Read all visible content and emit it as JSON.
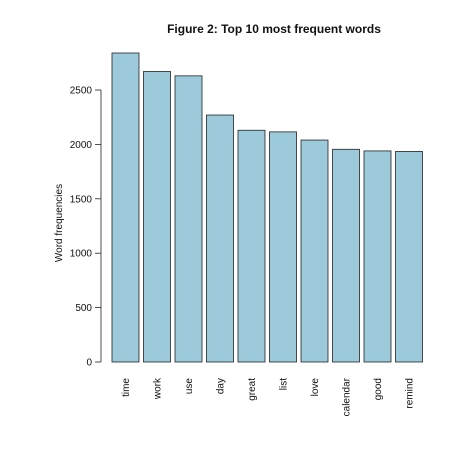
{
  "chart_data": {
    "type": "bar",
    "title": "Figure 2: Top 10 most frequent words",
    "xlabel": "",
    "ylabel": "Word frequencies",
    "categories": [
      "time",
      "work",
      "use",
      "day",
      "great",
      "list",
      "love",
      "calendar",
      "good",
      "remind"
    ],
    "values": [
      2840,
      2670,
      2630,
      2270,
      2130,
      2115,
      2040,
      1955,
      1940,
      1935
    ],
    "ylim": [
      0,
      2840
    ],
    "yticks": [
      0,
      500,
      1000,
      1500,
      2000,
      2500
    ],
    "grid": false,
    "bar_color": "#9ccadb",
    "edge_color": "#222222"
  }
}
